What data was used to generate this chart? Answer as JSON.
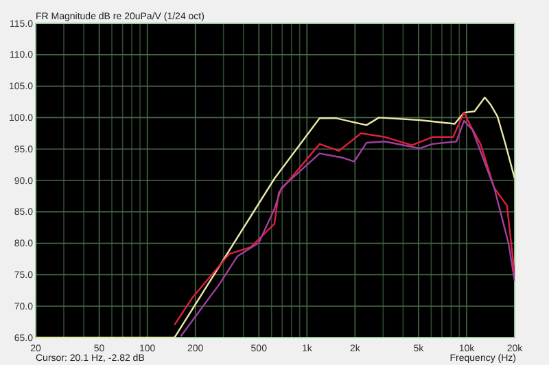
{
  "chart_data": {
    "type": "line",
    "title": "FR Magnitude dB re 20uPa/V (1/24 oct)",
    "xlabel": "Frequency (Hz)",
    "annotations": [
      "Cursor: 20.1 Hz, -2.82 dB"
    ],
    "log": "x",
    "grid": true,
    "marker": "none",
    "line_style": "solid",
    "xlim": [
      20,
      20000
    ],
    "ylim": [
      65,
      115
    ],
    "xticks": [
      20,
      {
        "value": 30,
        "label": null
      },
      {
        "value": 40,
        "label": null
      },
      50,
      {
        "value": 60,
        "label": null
      },
      {
        "value": 70,
        "label": null
      },
      {
        "value": 80,
        "label": null
      },
      {
        "value": 90,
        "label": null
      },
      100,
      200,
      {
        "value": 300,
        "label": null
      },
      {
        "value": 400,
        "label": null
      },
      500,
      {
        "value": 600,
        "label": null
      },
      {
        "value": 700,
        "label": null
      },
      {
        "value": 800,
        "label": null
      },
      {
        "value": 900,
        "label": null
      },
      {
        "value": 1000,
        "label": "1k"
      },
      {
        "value": 2000,
        "label": "2k"
      },
      {
        "value": 3000,
        "label": null
      },
      {
        "value": 4000,
        "label": null
      },
      {
        "value": 5000,
        "label": "5k"
      },
      {
        "value": 6000,
        "label": null
      },
      {
        "value": 7000,
        "label": null
      },
      {
        "value": 8000,
        "label": null
      },
      {
        "value": 9000,
        "label": null
      },
      {
        "value": 10000,
        "label": "10k"
      },
      {
        "value": 20000,
        "label": "20k"
      }
    ],
    "yticks": [
      {
        "value": 65,
        "label": "65.0"
      },
      {
        "value": 70,
        "label": "70.0"
      },
      {
        "value": 75,
        "label": "75.0"
      },
      {
        "value": 80,
        "label": "80.0"
      },
      {
        "value": 85,
        "label": "85.0"
      },
      {
        "value": 90,
        "label": "90.0"
      },
      {
        "value": 95,
        "label": "95.0"
      },
      {
        "value": 100,
        "label": "100.0"
      },
      {
        "value": 105,
        "label": "105.0"
      },
      {
        "value": 110,
        "label": "110.0"
      },
      {
        "value": 115,
        "label": "115.0"
      }
    ],
    "series": [
      {
        "color": "#e8e8a8",
        "x": [
          20,
          148,
          626,
          1200,
          1528,
          2360,
          2825,
          5060,
          8420,
          9640,
          11200,
          13000,
          14100,
          15600,
          17500,
          20000
        ],
        "values": [
          65,
          65,
          90.3,
          99.9,
          99.9,
          98.8,
          100,
          99.6,
          99,
          100.8,
          101,
          103.2,
          102.1,
          100.2,
          95.8,
          90.3
        ]
      },
      {
        "color": "#e0203a",
        "x": [
          148,
          191,
          326,
          445,
          626,
          666,
          1200,
          1585,
          2180,
          3090,
          4540,
          6110,
          8220,
          9640,
          10430,
          12220,
          14900,
          17900,
          20000
        ],
        "values": [
          67,
          71.3,
          78.3,
          79.4,
          83.1,
          88.1,
          95.8,
          94.7,
          97.5,
          96.9,
          95.6,
          96.9,
          96.9,
          100.8,
          99,
          95.8,
          88.8,
          86,
          75
        ]
      },
      {
        "color": "#a040a0",
        "x": [
          162,
          283,
          366,
          500,
          626,
          692,
          1200,
          1687,
          1976,
          2360,
          3090,
          5060,
          6110,
          8620,
          9640,
          10900,
          14900,
          18300,
          20000
        ],
        "values": [
          65.2,
          73.5,
          77.9,
          80.1,
          85.5,
          88.8,
          94.3,
          93.6,
          93,
          96,
          96.2,
          95.1,
          95.8,
          96.2,
          99.5,
          98,
          88.8,
          80,
          74
        ]
      }
    ]
  }
}
